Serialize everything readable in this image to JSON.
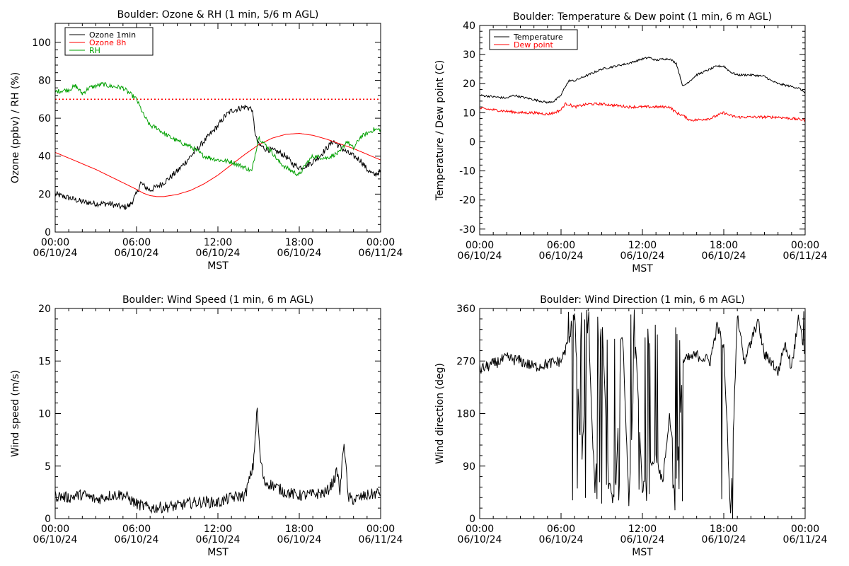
{
  "chart_data": [
    {
      "id": "ozone",
      "type": "line",
      "title": "Boulder: Ozone & RH (1 min, 5/6 m AGL)",
      "xlabel": "MST",
      "ylabel": "Ozone (ppbv) / RH (%)",
      "xlim": [
        0,
        24
      ],
      "ylim": [
        0,
        110
      ],
      "yticks": [
        0,
        20,
        40,
        60,
        80,
        100
      ],
      "xticks": [
        {
          "time": "00:00",
          "date": "06/10/24"
        },
        {
          "time": "06:00",
          "date": "06/10/24"
        },
        {
          "time": "12:00",
          "date": "06/10/24"
        },
        {
          "time": "18:00",
          "date": "06/10/24"
        },
        {
          "time": "00:00",
          "date": "06/11/24"
        }
      ],
      "legend": "top-left",
      "reference_line": {
        "y": 70,
        "color": "#ff0000",
        "style": "dotted"
      },
      "series": [
        {
          "name": "Ozone 1min",
          "color": "#000000",
          "noise": 1.6,
          "x": [
            0,
            1,
            2,
            3,
            4,
            5,
            5.5,
            6,
            6.3,
            6.6,
            7,
            8,
            9,
            10,
            11,
            12,
            12.5,
            13,
            13.5,
            14,
            14.5,
            14.8,
            15,
            15.5,
            16,
            16.5,
            17,
            17.5,
            18,
            18.5,
            19,
            19.5,
            20,
            20.5,
            21,
            21.5,
            22,
            22.5,
            23,
            23.5,
            24
          ],
          "y": [
            20,
            18,
            16,
            15,
            15,
            13,
            14,
            20,
            26,
            24,
            22,
            26,
            32,
            40,
            48,
            56,
            61,
            64,
            65,
            66,
            65,
            50,
            46,
            44,
            43,
            42,
            40,
            36,
            34,
            35,
            37,
            40,
            44,
            48,
            45,
            42,
            40,
            38,
            33,
            30,
            32
          ]
        },
        {
          "name": "Ozone 8h",
          "color": "#ff0000",
          "noise": 0,
          "x": [
            0,
            1,
            2,
            3,
            4,
            5,
            6,
            6.5,
            7,
            7.5,
            8,
            9,
            10,
            11,
            12,
            13,
            14,
            15,
            16,
            17,
            18,
            19,
            20,
            21,
            22,
            23,
            24
          ],
          "y": [
            42,
            39,
            36,
            33,
            29.5,
            26,
            22.5,
            20.5,
            19.2,
            18.7,
            18.7,
            19.8,
            22,
            25.5,
            30,
            35.5,
            41,
            46,
            49.5,
            51.5,
            52,
            51,
            49,
            46.5,
            44,
            41,
            38
          ]
        },
        {
          "name": "RH",
          "color": "#00a000",
          "noise": 1.2,
          "x": [
            0,
            1,
            1.5,
            2,
            2.5,
            3,
            3.5,
            4,
            5,
            5.5,
            6,
            6.5,
            7,
            7.5,
            8,
            9,
            10,
            11,
            12,
            13,
            14,
            14.5,
            15,
            15.5,
            16,
            16.5,
            17,
            17.5,
            18,
            18.5,
            19,
            20,
            21,
            21.5,
            22,
            22.5,
            23,
            23.5,
            24
          ],
          "y": [
            74,
            75,
            77,
            73,
            76,
            77,
            78,
            77,
            76,
            73,
            70,
            62,
            56,
            55,
            52,
            48,
            45,
            40,
            38,
            37,
            34,
            32,
            50,
            46,
            42,
            37,
            34,
            32,
            30,
            36,
            40,
            39,
            42,
            48,
            44,
            50,
            52,
            54,
            54
          ]
        }
      ]
    },
    {
      "id": "temperature",
      "type": "line",
      "title": "Boulder: Temperature & Dew point (1 min, 6 m AGL)",
      "xlabel": "MST",
      "ylabel": "Temperature / Dew point (C)",
      "xlim": [
        0,
        24
      ],
      "ylim": [
        -32,
        40
      ],
      "yticks": [
        -30,
        -20,
        -10,
        0,
        10,
        20,
        30,
        40
      ],
      "xticks": [
        {
          "time": "00:00",
          "date": "06/10/24"
        },
        {
          "time": "06:00",
          "date": "06/10/24"
        },
        {
          "time": "12:00",
          "date": "06/10/24"
        },
        {
          "time": "18:00",
          "date": "06/10/24"
        },
        {
          "time": "00:00",
          "date": "06/11/24"
        }
      ],
      "legend": "top-left",
      "series": [
        {
          "name": "Temperature",
          "color": "#000000",
          "noise": 0.35,
          "x": [
            0,
            1,
            2,
            2.5,
            3,
            4,
            5,
            5.5,
            6,
            6.3,
            6.6,
            7,
            8,
            9,
            10,
            11,
            12,
            12.5,
            13,
            13.5,
            14,
            14.5,
            14.8,
            15,
            15.5,
            16,
            17,
            17.5,
            18,
            18.5,
            19,
            20,
            21,
            21.5,
            22,
            23,
            23.5,
            24
          ],
          "y": [
            16,
            15.5,
            15,
            16,
            15.5,
            14.5,
            13.5,
            14,
            16,
            19,
            21,
            21,
            23,
            25,
            26,
            27,
            28.5,
            29,
            28,
            28.5,
            28.5,
            27,
            22,
            19,
            21,
            23,
            25,
            26,
            26,
            24,
            23,
            23,
            22.5,
            21,
            20,
            19,
            18.5,
            17
          ]
        },
        {
          "name": "Dew point",
          "color": "#ff0000",
          "noise": 0.45,
          "x": [
            0,
            1,
            2,
            3,
            4,
            5,
            5.5,
            6,
            6.3,
            6.5,
            7,
            8,
            9,
            10,
            11,
            12,
            13,
            14,
            14.5,
            15,
            15.5,
            16,
            17,
            17.5,
            18,
            18.5,
            19,
            20,
            21,
            22,
            23,
            24
          ],
          "y": [
            11.5,
            11,
            10.5,
            10,
            10,
            9.5,
            10,
            11,
            13,
            13,
            12,
            13,
            13,
            12.5,
            12,
            12,
            12,
            12,
            10,
            9,
            7.5,
            7.5,
            8,
            9,
            10,
            9,
            8.5,
            8.5,
            8.5,
            8.5,
            8,
            7.5
          ]
        }
      ]
    },
    {
      "id": "windspeed",
      "type": "line",
      "title": "Boulder: Wind Speed (1 min, 6 m AGL)",
      "xlabel": "MST",
      "ylabel": "Wind speed (m/s)",
      "xlim": [
        0,
        24
      ],
      "ylim": [
        0,
        20
      ],
      "yticks": [
        0,
        5,
        10,
        15,
        20
      ],
      "xticks": [
        {
          "time": "00:00",
          "date": "06/10/24"
        },
        {
          "time": "06:00",
          "date": "06/10/24"
        },
        {
          "time": "12:00",
          "date": "06/10/24"
        },
        {
          "time": "18:00",
          "date": "06/10/24"
        },
        {
          "time": "00:00",
          "date": "06/11/24"
        }
      ],
      "legend": "none",
      "series": [
        {
          "name": "",
          "color": "#000000",
          "noise": 0.55,
          "x": [
            0,
            1,
            2,
            3,
            4,
            5,
            6,
            7,
            8,
            9,
            10,
            11,
            12,
            13,
            14,
            14.6,
            14.9,
            15.1,
            15.4,
            16,
            17,
            18,
            19,
            20,
            20.5,
            20.8,
            21,
            21.3,
            21.6,
            22,
            23,
            24
          ],
          "y": [
            2.2,
            2,
            2.3,
            1.8,
            2.2,
            2.3,
            1.4,
            1.0,
            1.1,
            1.2,
            1.5,
            1.6,
            1.5,
            2.0,
            2.2,
            5,
            10.5,
            6,
            3.5,
            3.2,
            2.5,
            2.2,
            2.3,
            2.5,
            3.5,
            4.5,
            2.5,
            7.5,
            2,
            1.8,
            2.2,
            2.5
          ]
        }
      ]
    },
    {
      "id": "winddir",
      "type": "line",
      "title": "Boulder: Wind Direction (1 min, 6 m AGL)",
      "xlabel": "MST",
      "ylabel": "Wind direction (deg)",
      "xlim": [
        0,
        24
      ],
      "ylim": [
        0,
        360
      ],
      "yticks": [
        0,
        90,
        180,
        270,
        360
      ],
      "xticks": [
        {
          "time": "00:00",
          "date": "06/10/24"
        },
        {
          "time": "06:00",
          "date": "06/10/24"
        },
        {
          "time": "12:00",
          "date": "06/10/24"
        },
        {
          "time": "18:00",
          "date": "06/10/24"
        },
        {
          "time": "00:00",
          "date": "06/11/24"
        }
      ],
      "legend": "none",
      "series": [
        {
          "name": "",
          "color": "#000000",
          "noise": 10,
          "x": [
            0,
            1,
            2,
            3,
            4,
            5,
            6,
            6.5,
            7,
            7.5,
            8,
            8.5,
            9,
            9.5,
            10,
            10.5,
            11,
            11.5,
            12,
            12.5,
            13,
            13.5,
            14,
            14.5,
            15,
            16,
            17,
            17.5,
            18,
            18.5,
            19,
            19.5,
            20,
            20.5,
            21,
            21.5,
            22,
            22.5,
            23,
            23.5,
            24
          ],
          "y": [
            255,
            265,
            275,
            270,
            260,
            265,
            270,
            300,
            350,
            80,
            340,
            40,
            360,
            60,
            20,
            340,
            30,
            300,
            50,
            90,
            110,
            60,
            180,
            60,
            270,
            280,
            270,
            330,
            300,
            10,
            350,
            270,
            300,
            340,
            280,
            270,
            250,
            300,
            260,
            340,
            280
          ]
        }
      ]
    }
  ]
}
